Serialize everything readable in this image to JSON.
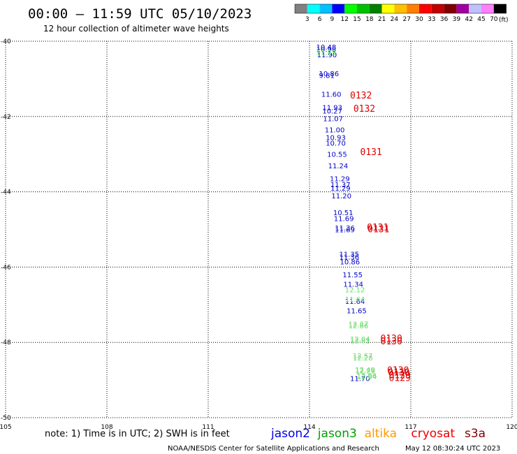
{
  "header": {
    "title": "00:00 – 11:59 UTC 05/10/2023",
    "subtitle": "12 hour collection of altimeter wave heights"
  },
  "colorbar": {
    "unit": "(ft)",
    "labels": [
      "3",
      "6",
      "9",
      "12",
      "15",
      "18",
      "21",
      "24",
      "27",
      "30",
      "33",
      "36",
      "39",
      "42",
      "45",
      "70"
    ],
    "colors": [
      "#808080",
      "#00ffff",
      "#00c0ff",
      "#0000ff",
      "#00ff00",
      "#00c000",
      "#008000",
      "#ffff00",
      "#ffc000",
      "#ff8000",
      "#ff0000",
      "#c00000",
      "#800000",
      "#a000a0",
      "#c0c0ff",
      "#ff80ff",
      "#000000"
    ]
  },
  "footer": {
    "note": "note:  1) Time is in UTC;  2) SWH is in feet",
    "credit": "NOAA/NESDIS Center for Satellite Applications and Research",
    "generated": "May 12 08:30:24 UTC 2023"
  },
  "legend": [
    {
      "name": "jason2",
      "color": "#0000ee"
    },
    {
      "name": "jason3",
      "color": "#00a000"
    },
    {
      "name": "altika",
      "color": "#ff9900"
    },
    {
      "name": "cryosat",
      "color": "#ee0000"
    },
    {
      "name": "s3a",
      "color": "#800000"
    }
  ],
  "chart_data": {
    "type": "scatter",
    "xlim": [
      105,
      120
    ],
    "ylim": [
      -50,
      -40
    ],
    "xticks": [
      "105",
      "108",
      "111",
      "114",
      "117",
      "120"
    ],
    "yticks": [
      "-40",
      "-42",
      "-44",
      "-46",
      "-48",
      "-50"
    ],
    "grid": true,
    "series": [
      {
        "name": "jason2",
        "color": "#0000cc",
        "points": [
          {
            "x": 114.2,
            "y": -40.15,
            "label": "10.48"
          },
          {
            "x": 114.2,
            "y": -40.2,
            "label": "10.98"
          },
          {
            "x": 114.22,
            "y": -40.35,
            "label": "11.90"
          },
          {
            "x": 114.28,
            "y": -40.85,
            "label": "10.86"
          },
          {
            "x": 114.28,
            "y": -40.9,
            "label": "9.81"
          },
          {
            "x": 114.35,
            "y": -41.4,
            "label": "11.60"
          },
          {
            "x": 114.38,
            "y": -41.75,
            "label": "11.93"
          },
          {
            "x": 114.38,
            "y": -41.85,
            "label": "10.27"
          },
          {
            "x": 114.4,
            "y": -42.05,
            "label": "11.07"
          },
          {
            "x": 114.45,
            "y": -42.35,
            "label": "11.00"
          },
          {
            "x": 114.48,
            "y": -42.55,
            "label": "10.93"
          },
          {
            "x": 114.48,
            "y": -42.7,
            "label": "10.70"
          },
          {
            "x": 114.52,
            "y": -43.0,
            "label": "10.55"
          },
          {
            "x": 114.55,
            "y": -43.3,
            "label": "11.24"
          },
          {
            "x": 114.6,
            "y": -43.65,
            "label": "11.29"
          },
          {
            "x": 114.62,
            "y": -43.8,
            "label": "11.37"
          },
          {
            "x": 114.62,
            "y": -43.9,
            "label": "11.29"
          },
          {
            "x": 114.65,
            "y": -44.1,
            "label": "11.20"
          },
          {
            "x": 114.7,
            "y": -44.55,
            "label": "10.51"
          },
          {
            "x": 114.72,
            "y": -44.7,
            "label": "11.69"
          },
          {
            "x": 114.75,
            "y": -44.95,
            "label": "11.36"
          },
          {
            "x": 114.75,
            "y": -45.0,
            "label": "11.69"
          },
          {
            "x": 114.88,
            "y": -45.65,
            "label": "11.35"
          },
          {
            "x": 114.88,
            "y": -45.72,
            "label": "11.36"
          },
          {
            "x": 114.9,
            "y": -45.85,
            "label": "10.86"
          },
          {
            "x": 114.98,
            "y": -46.2,
            "label": "11.55"
          },
          {
            "x": 115.0,
            "y": -46.45,
            "label": "11.34"
          },
          {
            "x": 115.05,
            "y": -46.9,
            "label": "11.64"
          },
          {
            "x": 115.1,
            "y": -47.15,
            "label": "11.65"
          },
          {
            "x": 115.2,
            "y": -48.95,
            "label": "11.70"
          }
        ]
      },
      {
        "name": "jason3",
        "color": "#66dd66",
        "points": [
          {
            "x": 114.2,
            "y": -40.3,
            "label": "11.55"
          },
          {
            "x": 115.05,
            "y": -46.6,
            "label": "12.12"
          },
          {
            "x": 115.05,
            "y": -46.85,
            "label": "11.64"
          },
          {
            "x": 115.15,
            "y": -47.5,
            "label": "12.87"
          },
          {
            "x": 115.15,
            "y": -47.55,
            "label": "12.86"
          },
          {
            "x": 115.2,
            "y": -47.9,
            "label": "12.04"
          },
          {
            "x": 115.2,
            "y": -47.95,
            "label": "12.81"
          },
          {
            "x": 115.28,
            "y": -48.35,
            "label": "12.57"
          },
          {
            "x": 115.28,
            "y": -48.4,
            "label": "12.28"
          },
          {
            "x": 115.35,
            "y": -48.72,
            "label": "12.49"
          },
          {
            "x": 115.35,
            "y": -48.75,
            "label": "12.29"
          },
          {
            "x": 115.4,
            "y": -48.88,
            "label": "12.96"
          },
          {
            "x": 115.4,
            "y": -48.9,
            "label": "12.64"
          }
        ]
      },
      {
        "name": "cryosat",
        "color": "#dd0000",
        "points": [
          {
            "x": 115.2,
            "y": -41.45,
            "label": "0132"
          },
          {
            "x": 115.3,
            "y": -41.8,
            "label": "0132"
          },
          {
            "x": 115.5,
            "y": -42.95,
            "label": "0131"
          },
          {
            "x": 115.7,
            "y": -44.95,
            "label": "0131"
          },
          {
            "x": 115.72,
            "y": -45.0,
            "label": "0131"
          },
          {
            "x": 116.1,
            "y": -47.9,
            "label": "0130"
          },
          {
            "x": 116.1,
            "y": -47.98,
            "label": "0130"
          },
          {
            "x": 116.3,
            "y": -48.75,
            "label": "0130"
          },
          {
            "x": 116.32,
            "y": -48.8,
            "label": "0130"
          },
          {
            "x": 116.35,
            "y": -48.88,
            "label": "0129"
          },
          {
            "x": 116.35,
            "y": -48.95,
            "label": "0129"
          }
        ]
      }
    ]
  }
}
